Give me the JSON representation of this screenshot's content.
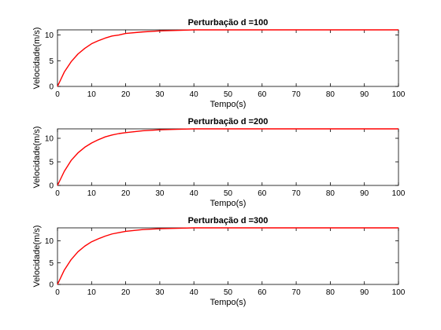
{
  "chart_data": [
    {
      "type": "line",
      "title": "Perturbação d =100",
      "xlabel": "Tempo(s)",
      "ylabel": "Velocidade(m/s)",
      "xlim": [
        0,
        100
      ],
      "ylim": [
        0,
        11
      ],
      "xticks": [
        "0",
        "10",
        "20",
        "30",
        "40",
        "50",
        "60",
        "70",
        "80",
        "90",
        "100"
      ],
      "yticks": [
        "0",
        "5",
        "10"
      ],
      "grid": false,
      "series": [
        {
          "color": "#ff0000",
          "x": [
            0,
            2,
            4,
            6,
            8,
            10,
            12,
            14,
            16,
            18,
            20,
            25,
            30,
            35,
            40,
            45,
            50,
            60,
            70,
            80,
            90,
            100
          ],
          "y": [
            0,
            2.8,
            4.8,
            6.3,
            7.4,
            8.3,
            8.9,
            9.4,
            9.8,
            10.0,
            10.3,
            10.6,
            10.8,
            10.9,
            11.0,
            11.0,
            11.0,
            11.0,
            11.0,
            11.0,
            11.0,
            11.0
          ]
        }
      ]
    },
    {
      "type": "line",
      "title": "Perturbação d =200",
      "xlabel": "Tempo(s)",
      "ylabel": "Velocidade(m/s)",
      "xlim": [
        0,
        100
      ],
      "ylim": [
        0,
        12
      ],
      "xticks": [
        "0",
        "10",
        "20",
        "30",
        "40",
        "50",
        "60",
        "70",
        "80",
        "90",
        "100"
      ],
      "yticks": [
        "0",
        "5",
        "10"
      ],
      "grid": false,
      "series": [
        {
          "color": "#ff0000",
          "x": [
            0,
            2,
            4,
            6,
            8,
            10,
            12,
            14,
            16,
            18,
            20,
            25,
            30,
            35,
            40,
            45,
            50,
            60,
            70,
            80,
            90,
            100
          ],
          "y": [
            0,
            3.0,
            5.3,
            6.9,
            8.1,
            9.0,
            9.7,
            10.3,
            10.7,
            11.0,
            11.2,
            11.6,
            11.8,
            11.9,
            12.0,
            12.0,
            12.0,
            12.0,
            12.0,
            12.0,
            12.0,
            12.0
          ]
        }
      ]
    },
    {
      "type": "line",
      "title": "Perturbação d =300",
      "xlabel": "Tempo(s)",
      "ylabel": "Velocidade(m/s)",
      "xlim": [
        0,
        100
      ],
      "ylim": [
        0,
        13
      ],
      "xticks": [
        "0",
        "10",
        "20",
        "30",
        "40",
        "50",
        "60",
        "70",
        "80",
        "90",
        "100"
      ],
      "yticks": [
        "0",
        "5",
        "10"
      ],
      "grid": false,
      "series": [
        {
          "color": "#ff0000",
          "x": [
            0,
            2,
            4,
            6,
            8,
            10,
            12,
            14,
            16,
            18,
            20,
            25,
            30,
            35,
            40,
            45,
            50,
            60,
            70,
            80,
            90,
            100
          ],
          "y": [
            0,
            3.3,
            5.7,
            7.5,
            8.8,
            9.8,
            10.5,
            11.1,
            11.6,
            11.9,
            12.2,
            12.6,
            12.8,
            12.9,
            13.0,
            13.0,
            13.0,
            13.0,
            13.0,
            13.0,
            13.0,
            13.0
          ]
        }
      ]
    }
  ]
}
